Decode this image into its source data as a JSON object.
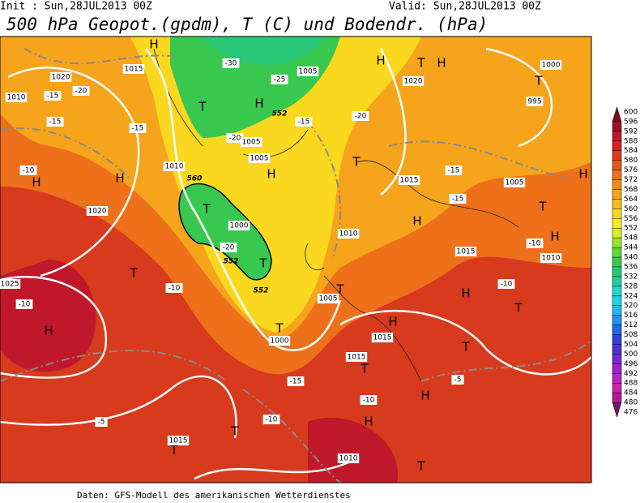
{
  "header": {
    "init": "Init : Sun,28JUL2013 00Z",
    "valid": "Valid: Sun,28JUL2013 00Z",
    "title": "500 hPa Geopot.(gpdm), T (C) und Bodendr. (hPa)"
  },
  "footer": "Daten: GFS-Modell des amerikanischen Wetterdienstes",
  "colorbar": {
    "labels": [
      "600",
      "596",
      "592",
      "588",
      "584",
      "580",
      "576",
      "572",
      "568",
      "564",
      "560",
      "556",
      "552",
      "548",
      "544",
      "540",
      "536",
      "532",
      "528",
      "524",
      "520",
      "516",
      "512",
      "508",
      "504",
      "500",
      "496",
      "492",
      "488",
      "484",
      "480",
      "476"
    ],
    "colors": [
      "#7a0a1e",
      "#a0102a",
      "#c0182a",
      "#d32020",
      "#e03a1c",
      "#e8561a",
      "#ee701a",
      "#f28a1a",
      "#f5a41c",
      "#f8be1e",
      "#fad820",
      "#f8ee20",
      "#d8f020",
      "#9ae628",
      "#5cd838",
      "#38c850",
      "#28c878",
      "#20d0a0",
      "#20d8c8",
      "#20d0e8",
      "#20b8f0",
      "#2090f0",
      "#2068e8",
      "#3040d8",
      "#5030d0",
      "#7828d0",
      "#a020d0",
      "#c020c8",
      "#d020a8",
      "#b81890",
      "#7a1070"
    ]
  },
  "map_labels": [
    "H",
    "T",
    "H",
    "T",
    "H",
    "T",
    "H",
    "H",
    "T",
    "H",
    "T",
    "T",
    "H",
    "T",
    "H",
    "T",
    "H",
    "T",
    "H",
    "H",
    "T",
    "H",
    "T",
    "H",
    "T",
    "T",
    "H",
    "T",
    "H",
    "T",
    "T",
    "1020",
    "1015",
    "1010",
    "1005",
    "1000",
    "1005",
    "1010",
    "1015",
    "1020",
    "1015",
    "1005",
    "995",
    "1025",
    "1020",
    "1015",
    "1010",
    "1000",
    "1005",
    "1015",
    "1010",
    "1015",
    "1005",
    "1010",
    "1000",
    "-15",
    "-20",
    "-15",
    "-10",
    "-10",
    "-15",
    "-20",
    "-25",
    "-30",
    "-15",
    "-20",
    "-10",
    "-5",
    "-10",
    "-15",
    "-10",
    "-5",
    "-15",
    "-10",
    "-20",
    "-15",
    "-10",
    "552",
    "560",
    "552",
    "552"
  ]
}
